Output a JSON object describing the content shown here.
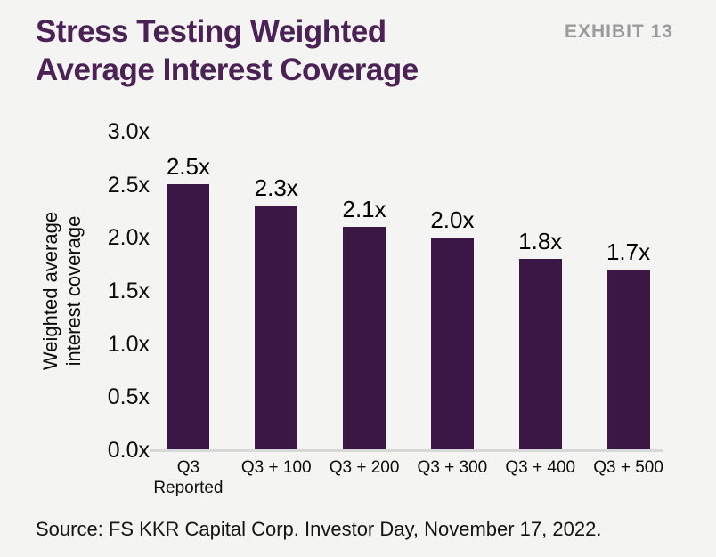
{
  "colors": {
    "background": "#f4f4f2",
    "title": "#4c2256",
    "exhibit": "#9b9b9d",
    "bar": "#3a1745",
    "axis_line": "#d8d8d8",
    "text": "#0d0d0d"
  },
  "header": {
    "title_line1": "Stress Testing Weighted",
    "title_line2": "Average Interest Coverage",
    "exhibit_label": "EXHIBIT 13"
  },
  "chart_data": {
    "type": "bar",
    "title": "Stress Testing Weighted Average Interest Coverage",
    "categories": [
      "Q3 Reported",
      "Q3 + 100",
      "Q3 + 200",
      "Q3 + 300",
      "Q3 + 400",
      "Q3 + 500"
    ],
    "values": [
      2.5,
      2.3,
      2.1,
      2.0,
      1.8,
      1.7
    ],
    "data_labels": [
      "2.5x",
      "2.3x",
      "2.1x",
      "2.0x",
      "1.8x",
      "1.7x"
    ],
    "ylabel_line1": "Weighted average",
    "ylabel_line2": "interest coverage",
    "yticks": [
      "3.0x",
      "2.5x",
      "2.0x",
      "1.5x",
      "1.0x",
      "0.5x",
      "0.0x"
    ],
    "ylim": [
      0,
      3.0
    ],
    "grid": false,
    "legend": false,
    "bar_color": "#3a1745"
  },
  "footer": {
    "source": "Source: FS KKR Capital Corp. Investor Day, November 17, 2022."
  }
}
